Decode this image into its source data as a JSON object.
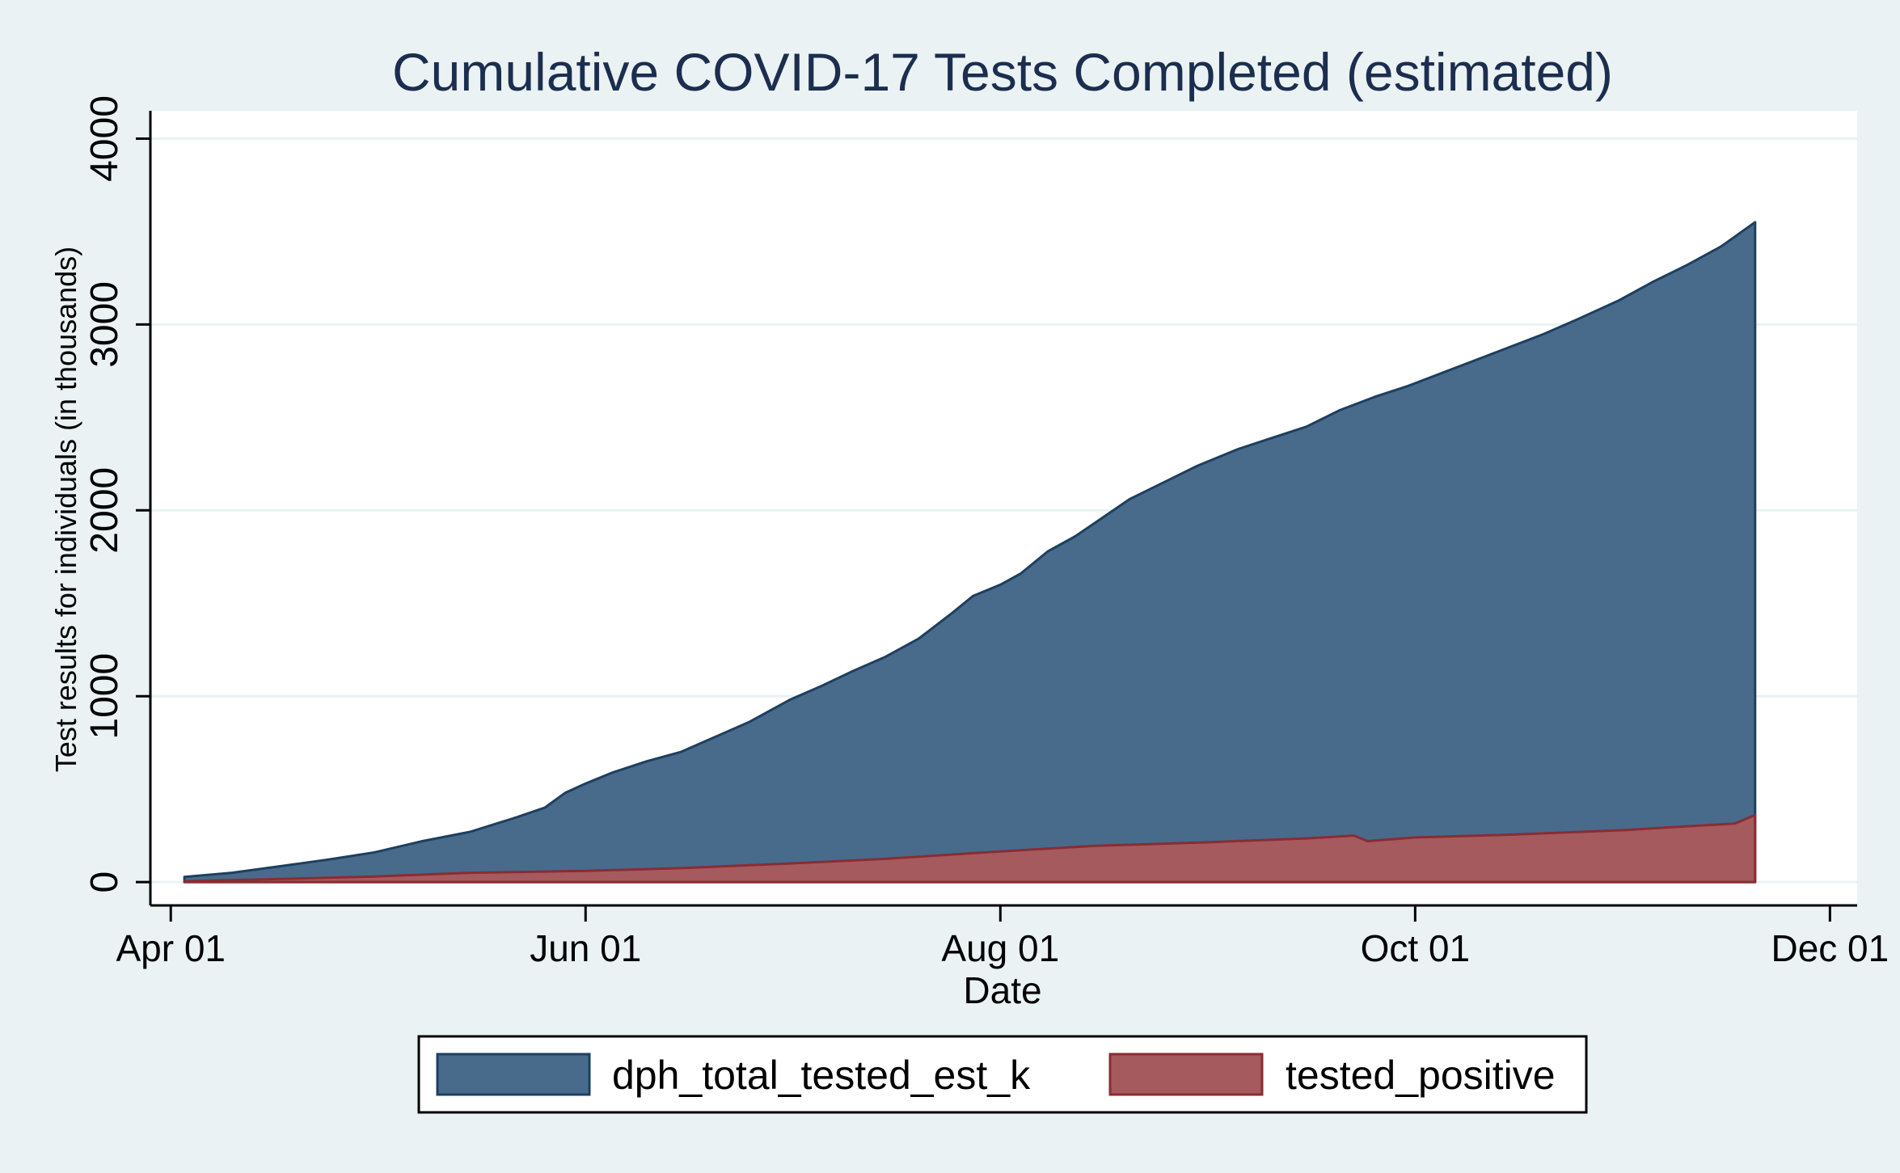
{
  "chart_data": {
    "type": "area",
    "title": "Cumulative COVID-17 Tests Completed (estimated)",
    "xlabel": "Date",
    "ylabel": "Test results for individuals (in thousands)",
    "x_ticks": [
      "Apr 01",
      "Jun 01",
      "Aug 01",
      "Oct 01",
      "Dec 01"
    ],
    "y_ticks": [
      0,
      1000,
      2000,
      3000,
      4000
    ],
    "xlim": [
      "2020-03-29",
      "2020-12-05"
    ],
    "ylim": [
      -130,
      4150
    ],
    "grid": true,
    "legend_position": "bottom",
    "colors": {
      "total": "#486b8c",
      "total_edge": "#1e3f60",
      "positive": "#a55a5e",
      "positive_edge": "#8a2c33",
      "plot_bg": "#ffffff",
      "outer_bg": "#eaf2f3",
      "grid": "#eaf2f3",
      "title": "#1c2e4f"
    },
    "series": [
      {
        "name": "dph_total_tested_est_k",
        "points": [
          [
            "2020-04-03",
            28
          ],
          [
            "2020-04-10",
            50
          ],
          [
            "2020-04-17",
            85
          ],
          [
            "2020-04-24",
            120
          ],
          [
            "2020-05-01",
            160
          ],
          [
            "2020-05-08",
            220
          ],
          [
            "2020-05-15",
            270
          ],
          [
            "2020-05-22",
            350
          ],
          [
            "2020-05-26",
            400
          ],
          [
            "2020-05-29",
            480
          ],
          [
            "2020-06-01",
            530
          ],
          [
            "2020-06-05",
            590
          ],
          [
            "2020-06-10",
            650
          ],
          [
            "2020-06-15",
            700
          ],
          [
            "2020-06-20",
            780
          ],
          [
            "2020-06-25",
            860
          ],
          [
            "2020-07-01",
            980
          ],
          [
            "2020-07-06",
            1060
          ],
          [
            "2020-07-10",
            1130
          ],
          [
            "2020-07-15",
            1210
          ],
          [
            "2020-07-20",
            1310
          ],
          [
            "2020-07-25",
            1450
          ],
          [
            "2020-07-28",
            1540
          ],
          [
            "2020-08-01",
            1600
          ],
          [
            "2020-08-04",
            1660
          ],
          [
            "2020-08-08",
            1780
          ],
          [
            "2020-08-12",
            1860
          ],
          [
            "2020-08-16",
            1960
          ],
          [
            "2020-08-20",
            2060
          ],
          [
            "2020-08-25",
            2150
          ],
          [
            "2020-08-30",
            2240
          ],
          [
            "2020-09-05",
            2330
          ],
          [
            "2020-09-10",
            2390
          ],
          [
            "2020-09-15",
            2450
          ],
          [
            "2020-09-20",
            2540
          ],
          [
            "2020-09-25",
            2610
          ],
          [
            "2020-09-30",
            2670
          ],
          [
            "2020-10-05",
            2740
          ],
          [
            "2020-10-10",
            2810
          ],
          [
            "2020-10-15",
            2880
          ],
          [
            "2020-10-20",
            2950
          ],
          [
            "2020-10-25",
            3030
          ],
          [
            "2020-10-31",
            3130
          ],
          [
            "2020-11-05",
            3230
          ],
          [
            "2020-11-10",
            3320
          ],
          [
            "2020-11-15",
            3420
          ],
          [
            "2020-11-20",
            3550
          ]
        ]
      },
      {
        "name": "tested_positive",
        "points": [
          [
            "2020-04-03",
            5
          ],
          [
            "2020-04-15",
            15
          ],
          [
            "2020-05-01",
            30
          ],
          [
            "2020-05-15",
            50
          ],
          [
            "2020-06-01",
            60
          ],
          [
            "2020-06-15",
            75
          ],
          [
            "2020-07-01",
            100
          ],
          [
            "2020-07-15",
            125
          ],
          [
            "2020-08-01",
            165
          ],
          [
            "2020-08-15",
            195
          ],
          [
            "2020-09-01",
            215
          ],
          [
            "2020-09-15",
            235
          ],
          [
            "2020-09-22",
            250
          ],
          [
            "2020-09-24",
            220
          ],
          [
            "2020-10-01",
            240
          ],
          [
            "2020-10-15",
            255
          ],
          [
            "2020-11-01",
            280
          ],
          [
            "2020-11-10",
            300
          ],
          [
            "2020-11-17",
            315
          ],
          [
            "2020-11-20",
            360
          ]
        ]
      }
    ]
  }
}
